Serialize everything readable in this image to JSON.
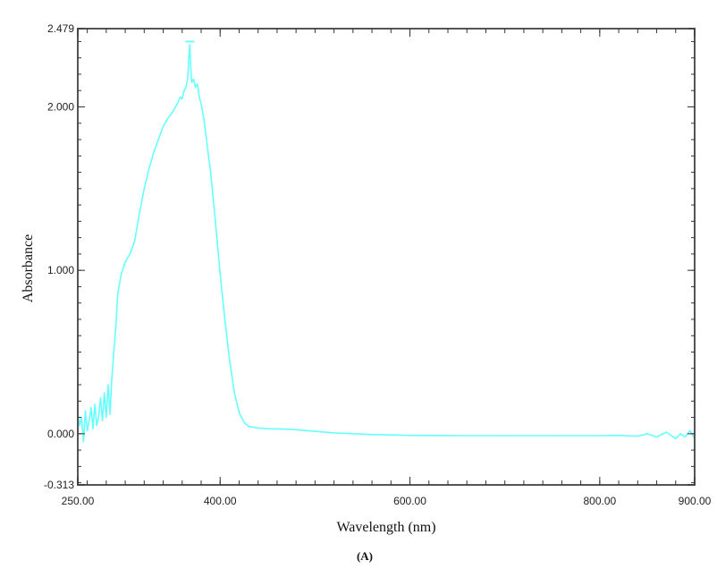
{
  "chart_data": {
    "type": "line",
    "title": "",
    "xlabel": "Wavelength (nm)",
    "ylabel": "Absorbance",
    "caption": "(A)",
    "xlim": [
      250.0,
      900.0
    ],
    "ylim": [
      -0.313,
      2.479
    ],
    "x_tick_labels": [
      "250.00",
      "400.00",
      "600.00",
      "800.00",
      "900.00"
    ],
    "x_ticks": [
      250,
      400,
      600,
      800,
      900
    ],
    "y_tick_labels": [
      "2.479",
      "2.000",
      "1.000",
      "0.000",
      "-0.313"
    ],
    "y_ticks": [
      2.479,
      2.0,
      1.0,
      0.0,
      -0.313
    ],
    "grid": false,
    "line_color": "#66ffff",
    "series": [
      {
        "x": [
          250,
          252,
          254,
          256,
          258,
          260,
          262,
          264,
          266,
          268,
          270,
          272,
          274,
          276,
          278,
          280,
          282,
          284,
          286,
          288,
          290,
          292,
          294,
          296,
          300,
          305,
          310,
          315,
          320,
          325,
          330,
          335,
          340,
          345,
          350,
          355,
          358,
          360,
          362,
          364,
          366,
          367,
          368,
          369,
          370,
          372,
          374,
          376,
          378,
          380,
          383,
          386,
          390,
          395,
          400,
          405,
          410,
          415,
          420,
          425,
          430,
          440,
          450,
          460,
          480,
          500,
          520,
          540,
          560,
          600,
          650,
          700,
          750,
          800,
          820,
          840,
          850,
          860,
          870,
          880,
          885,
          890,
          895,
          900
        ],
        "y": [
          0.12,
          0.05,
          0.1,
          -0.05,
          0.14,
          0.02,
          0.08,
          0.16,
          0.03,
          0.18,
          0.05,
          0.11,
          0.22,
          0.08,
          0.25,
          0.1,
          0.3,
          0.12,
          0.35,
          0.5,
          0.65,
          0.85,
          0.92,
          0.98,
          1.05,
          1.1,
          1.18,
          1.35,
          1.5,
          1.62,
          1.72,
          1.8,
          1.88,
          1.93,
          1.97,
          2.02,
          2.06,
          2.05,
          2.1,
          2.12,
          2.18,
          2.3,
          2.38,
          2.25,
          2.15,
          2.17,
          2.12,
          2.14,
          2.06,
          2.02,
          1.92,
          1.78,
          1.6,
          1.3,
          0.98,
          0.7,
          0.45,
          0.25,
          0.13,
          0.07,
          0.045,
          0.035,
          0.03,
          0.03,
          0.025,
          0.015,
          0.005,
          0.0,
          -0.005,
          -0.01,
          -0.012,
          -0.012,
          -0.012,
          -0.012,
          -0.01,
          -0.015,
          0.0,
          -0.02,
          0.01,
          -0.03,
          0.0,
          -0.02,
          0.02,
          -0.03
        ],
        "peak_marker": {
          "x": 368,
          "y": 2.4
        }
      }
    ]
  }
}
